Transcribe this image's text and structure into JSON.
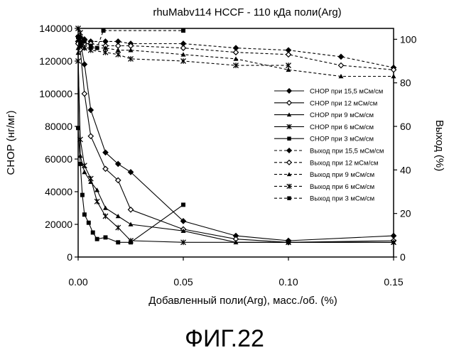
{
  "figure_caption": "ФИГ.22",
  "chart_data": {
    "type": "line",
    "title": "rhuMabv114 HCCF - 110 кДа поли(Arg)",
    "xlabel": "Добавленный поли(Arg), масс./об. (%)",
    "ylabel": "CHOP (нг/мг)",
    "y2label": "Выход (%)",
    "xlim": [
      0,
      0.15
    ],
    "ylim": [
      0,
      140000
    ],
    "y2lim": [
      0,
      105
    ],
    "x_ticks": [
      "0.00",
      "0.05",
      "0.10",
      "0.15"
    ],
    "y_ticks": [
      "0",
      "20000",
      "40000",
      "60000",
      "80000",
      "100000",
      "120000",
      "140000"
    ],
    "y2_ticks": [
      "0",
      "20",
      "40",
      "60",
      "80",
      "100"
    ],
    "x_tick_values": [
      0,
      0.05,
      0.1,
      0.15
    ],
    "y_tick_values": [
      0,
      20000,
      40000,
      60000,
      80000,
      100000,
      120000,
      140000
    ],
    "y2_tick_values": [
      0,
      20,
      40,
      60,
      80,
      100
    ],
    "legend_position": "right",
    "grid": false,
    "series": [
      {
        "name": "CHOP при 15,5 мСм/см",
        "axis": "left",
        "style": "solid",
        "marker": "diamond-filled",
        "x": [
          0,
          0.001,
          0.003,
          0.006,
          0.013,
          0.019,
          0.025,
          0.05,
          0.075,
          0.1,
          0.15
        ],
        "y": [
          135000,
          132000,
          118000,
          90000,
          64000,
          57000,
          52000,
          22000,
          13000,
          10000,
          13000
        ]
      },
      {
        "name": "CHOP при 12 мСм/см",
        "axis": "left",
        "style": "solid",
        "marker": "diamond-open",
        "x": [
          0,
          0.001,
          0.003,
          0.006,
          0.013,
          0.019,
          0.025,
          0.05,
          0.075,
          0.1,
          0.15
        ],
        "y": [
          132000,
          127000,
          100000,
          74000,
          54000,
          47000,
          29000,
          17000,
          11000,
          9000,
          10000
        ]
      },
      {
        "name": "CHOP при 9 мСм/см",
        "axis": "left",
        "style": "solid",
        "marker": "triangle",
        "x": [
          0,
          0.001,
          0.003,
          0.006,
          0.009,
          0.013,
          0.019,
          0.025,
          0.05,
          0.075,
          0.1,
          0.15
        ],
        "y": [
          125000,
          62000,
          52000,
          46000,
          41000,
          30000,
          25000,
          20000,
          16000,
          9000,
          9000,
          9000
        ]
      },
      {
        "name": "CHOP при 6 мСм/см",
        "axis": "left",
        "style": "solid",
        "marker": "star",
        "x": [
          0,
          0.001,
          0.003,
          0.006,
          0.009,
          0.013,
          0.019,
          0.025,
          0.05,
          0.1,
          0.15
        ],
        "y": [
          120000,
          72000,
          56000,
          48000,
          34000,
          25000,
          18000,
          10000,
          9000,
          9000,
          9000
        ]
      },
      {
        "name": "CHOP при 3 мСм/см",
        "axis": "left",
        "style": "solid",
        "marker": "square",
        "x": [
          0,
          0.001,
          0.002,
          0.003,
          0.005,
          0.007,
          0.009,
          0.013,
          0.019,
          0.025,
          0.05
        ],
        "y": [
          79000,
          57000,
          38000,
          26000,
          21000,
          15000,
          11000,
          12000,
          9000,
          9000,
          32000
        ]
      },
      {
        "name": "Выход при 15,5 мСм/см",
        "axis": "right",
        "style": "dashed",
        "marker": "diamond-filled",
        "x": [
          0,
          0.001,
          0.003,
          0.006,
          0.013,
          0.019,
          0.025,
          0.05,
          0.075,
          0.1,
          0.125,
          0.15
        ],
        "y": [
          99,
          101,
          100,
          99,
          99,
          99,
          98,
          98,
          96,
          95,
          92,
          87
        ]
      },
      {
        "name": "Выход при 12 мСм/см",
        "axis": "right",
        "style": "dashed",
        "marker": "diamond-open",
        "x": [
          0,
          0.001,
          0.003,
          0.006,
          0.013,
          0.019,
          0.025,
          0.05,
          0.075,
          0.1,
          0.125,
          0.15
        ],
        "y": [
          98,
          97,
          98,
          98,
          97,
          97,
          97,
          96,
          94,
          93,
          88,
          86
        ]
      },
      {
        "name": "Выход при 9 мСм/см",
        "axis": "right",
        "style": "dashed",
        "marker": "triangle",
        "x": [
          0,
          0.001,
          0.003,
          0.006,
          0.013,
          0.019,
          0.025,
          0.05,
          0.075,
          0.1,
          0.125,
          0.15
        ],
        "y": [
          96,
          97,
          96,
          96,
          96,
          95,
          95,
          93,
          91,
          86,
          83,
          83
        ]
      },
      {
        "name": "Выход при 6 мСм/см",
        "axis": "right",
        "style": "dashed",
        "marker": "star",
        "x": [
          0,
          0.001,
          0.003,
          0.006,
          0.013,
          0.019,
          0.025,
          0.05,
          0.075,
          0.1
        ],
        "y": [
          105,
          103,
          96,
          95,
          94,
          93,
          91,
          90,
          88,
          88
        ]
      },
      {
        "name": "Выход при 3 мСм/см",
        "axis": "right",
        "style": "dashed",
        "marker": "square",
        "x": [
          0,
          0.001,
          0.003,
          0.006,
          0.009,
          0.012,
          0.05
        ],
        "y": [
          101,
          98,
          99,
          97,
          96,
          104,
          104
        ]
      }
    ]
  }
}
